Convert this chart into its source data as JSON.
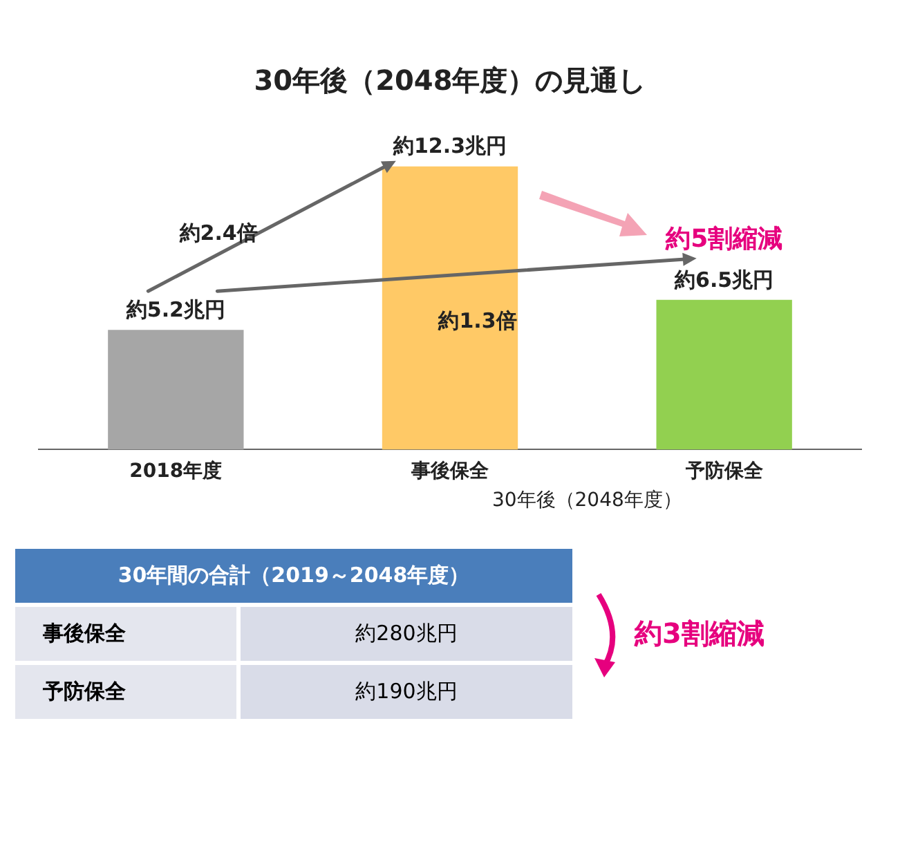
{
  "chart_data": [
    {
      "type": "bar",
      "title": "30年後（2048年度）の見通し",
      "categories": [
        "2018年度",
        "事後保全",
        "予防保全"
      ],
      "values": [
        5.2,
        12.3,
        6.5
      ],
      "colors": [
        "#a6a6a6",
        "#ffc966",
        "#92d050"
      ],
      "value_labels": [
        "約5.2兆円",
        "約12.3兆円",
        "約6.5兆円"
      ],
      "annotations": [
        "約2.4倍",
        "約1.3倍",
        "約5割縮減",
        "30年後（2048年度）"
      ],
      "legend": false,
      "grid": false
    },
    {
      "type": "other",
      "title": "30年間の合計（2019～2048年度）",
      "categories": [
        "事後保全",
        "予防保全"
      ],
      "values": [
        280,
        190
      ],
      "value_labels": [
        "約280兆円",
        "約190兆円"
      ],
      "annotations": [
        "約3割縮減"
      ]
    }
  ]
}
